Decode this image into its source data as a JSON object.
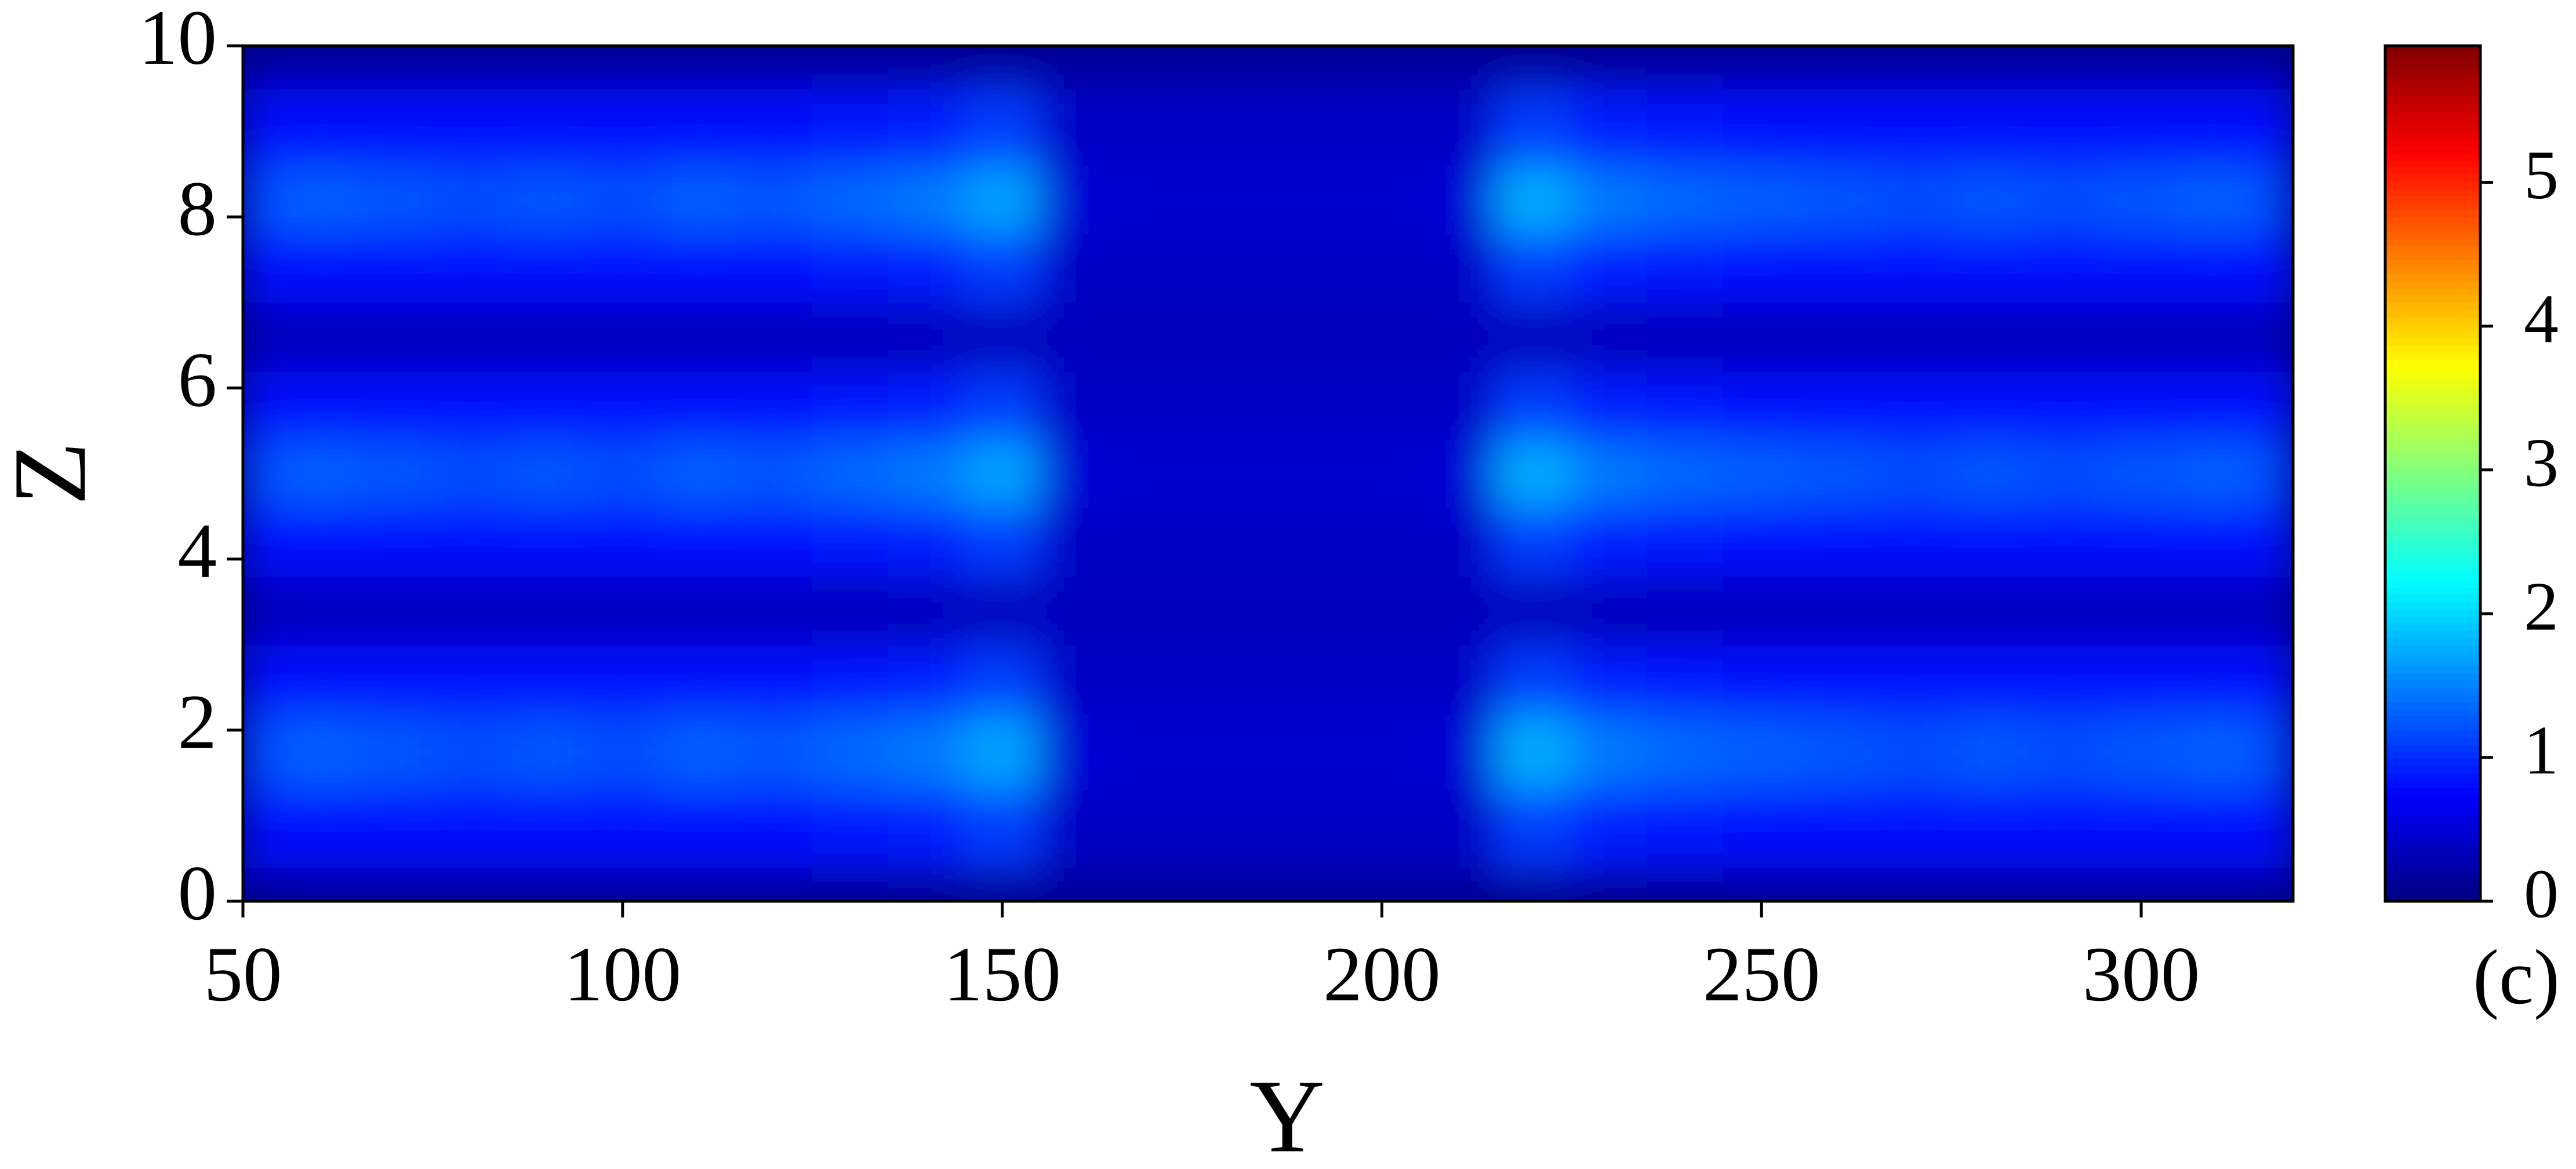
{
  "chart_data": {
    "type": "heatmap",
    "x_label": "Y",
    "y_label": "Z",
    "annotation": "(c)",
    "colormap": "jet",
    "xlim": [
      50,
      320
    ],
    "xticks": [
      50,
      100,
      150,
      200,
      250,
      300
    ],
    "ylim": [
      0,
      10
    ],
    "yticks": [
      0,
      2,
      4,
      6,
      8,
      10
    ],
    "zlim": [
      0,
      5.95
    ],
    "zticks": [
      0,
      1,
      2,
      3,
      4,
      5
    ],
    "x": [
      50,
      60,
      70,
      80,
      90,
      100,
      110,
      120,
      130,
      140,
      150,
      160,
      170,
      180,
      190,
      200,
      210,
      220,
      230,
      240,
      250,
      260,
      270,
      280,
      290,
      300,
      310,
      320
    ],
    "y": [
      0,
      0.8,
      1.8,
      2.6,
      3.4,
      4.2,
      5.0,
      5.8,
      6.6,
      7.4,
      8.2,
      9.0,
      10
    ],
    "values": [
      [
        0.2,
        0.2,
        0.2,
        0.2,
        0.2,
        0.2,
        0.2,
        0.2,
        0.2,
        0.2,
        0.2,
        0.2,
        0.2,
        0.2,
        0.2,
        0.2,
        0.2,
        0.2,
        0.2,
        0.2,
        0.2,
        0.2,
        0.2,
        0.2,
        0.2,
        0.2,
        0.2,
        0.2
      ],
      [
        0.8,
        0.8,
        0.8,
        0.8,
        0.8,
        0.8,
        0.8,
        0.8,
        0.85,
        0.9,
        1.1,
        0.4,
        0.4,
        0.4,
        0.4,
        0.4,
        0.4,
        1.1,
        0.9,
        0.85,
        0.8,
        0.8,
        0.8,
        0.8,
        0.8,
        0.8,
        0.8,
        0.8
      ],
      [
        1.2,
        1.3,
        1.25,
        1.2,
        1.25,
        1.2,
        1.3,
        1.25,
        1.35,
        1.45,
        1.7,
        0.5,
        0.45,
        0.45,
        0.45,
        0.45,
        0.5,
        1.75,
        1.45,
        1.35,
        1.3,
        1.25,
        1.2,
        1.25,
        1.2,
        1.25,
        1.3,
        1.2
      ],
      [
        0.8,
        0.8,
        0.8,
        0.8,
        0.8,
        0.8,
        0.8,
        0.8,
        0.85,
        0.9,
        1.1,
        0.4,
        0.4,
        0.4,
        0.4,
        0.4,
        0.4,
        1.1,
        0.9,
        0.85,
        0.8,
        0.8,
        0.8,
        0.8,
        0.8,
        0.8,
        0.8,
        0.8
      ],
      [
        0.35,
        0.35,
        0.35,
        0.35,
        0.35,
        0.35,
        0.35,
        0.35,
        0.35,
        0.35,
        0.35,
        0.35,
        0.35,
        0.35,
        0.35,
        0.35,
        0.35,
        0.35,
        0.35,
        0.35,
        0.35,
        0.35,
        0.35,
        0.35,
        0.35,
        0.35,
        0.35,
        0.35
      ],
      [
        0.8,
        0.8,
        0.8,
        0.8,
        0.8,
        0.8,
        0.8,
        0.8,
        0.85,
        0.9,
        1.1,
        0.4,
        0.4,
        0.4,
        0.4,
        0.4,
        0.4,
        1.1,
        0.9,
        0.85,
        0.8,
        0.8,
        0.8,
        0.8,
        0.8,
        0.8,
        0.8,
        0.8
      ],
      [
        1.2,
        1.3,
        1.25,
        1.2,
        1.25,
        1.2,
        1.3,
        1.25,
        1.35,
        1.45,
        1.7,
        0.5,
        0.45,
        0.45,
        0.45,
        0.45,
        0.5,
        1.75,
        1.45,
        1.35,
        1.3,
        1.25,
        1.2,
        1.25,
        1.2,
        1.25,
        1.3,
        1.2
      ],
      [
        0.8,
        0.8,
        0.8,
        0.8,
        0.8,
        0.8,
        0.8,
        0.8,
        0.85,
        0.9,
        1.1,
        0.4,
        0.4,
        0.4,
        0.4,
        0.4,
        0.4,
        1.1,
        0.9,
        0.85,
        0.8,
        0.8,
        0.8,
        0.8,
        0.8,
        0.8,
        0.8,
        0.8
      ],
      [
        0.35,
        0.35,
        0.35,
        0.35,
        0.35,
        0.35,
        0.35,
        0.35,
        0.35,
        0.35,
        0.35,
        0.35,
        0.35,
        0.35,
        0.35,
        0.35,
        0.35,
        0.35,
        0.35,
        0.35,
        0.35,
        0.35,
        0.35,
        0.35,
        0.35,
        0.35,
        0.35,
        0.35
      ],
      [
        0.8,
        0.8,
        0.8,
        0.8,
        0.8,
        0.8,
        0.8,
        0.8,
        0.85,
        0.9,
        1.1,
        0.4,
        0.4,
        0.4,
        0.4,
        0.4,
        0.4,
        1.1,
        0.9,
        0.85,
        0.8,
        0.8,
        0.8,
        0.8,
        0.8,
        0.8,
        0.8,
        0.8
      ],
      [
        1.2,
        1.3,
        1.25,
        1.2,
        1.25,
        1.2,
        1.3,
        1.25,
        1.35,
        1.45,
        1.7,
        0.5,
        0.45,
        0.45,
        0.45,
        0.45,
        0.5,
        1.75,
        1.45,
        1.35,
        1.3,
        1.25,
        1.2,
        1.25,
        1.2,
        1.25,
        1.3,
        1.2
      ],
      [
        0.8,
        0.8,
        0.8,
        0.8,
        0.8,
        0.8,
        0.8,
        0.8,
        0.85,
        0.9,
        1.1,
        0.4,
        0.4,
        0.4,
        0.4,
        0.4,
        0.4,
        1.1,
        0.9,
        0.85,
        0.8,
        0.8,
        0.8,
        0.8,
        0.8,
        0.8,
        0.8,
        0.8
      ],
      [
        0.2,
        0.2,
        0.2,
        0.2,
        0.2,
        0.2,
        0.2,
        0.2,
        0.2,
        0.2,
        0.2,
        0.2,
        0.2,
        0.2,
        0.2,
        0.2,
        0.2,
        0.2,
        0.2,
        0.2,
        0.2,
        0.2,
        0.2,
        0.2,
        0.2,
        0.2,
        0.2,
        0.2
      ]
    ]
  }
}
